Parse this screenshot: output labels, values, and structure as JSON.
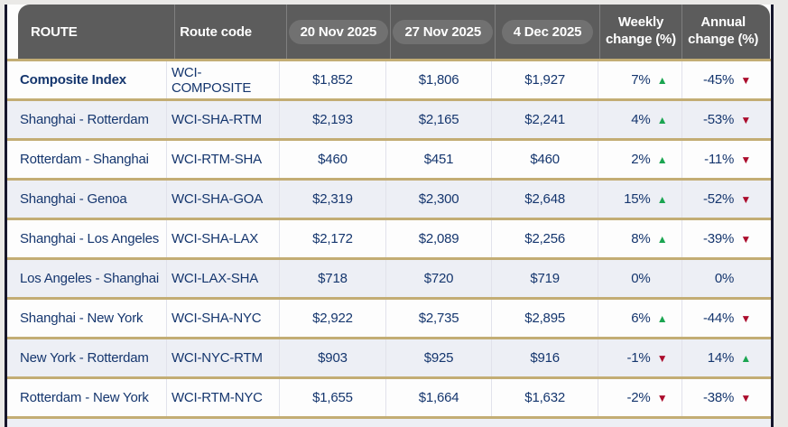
{
  "table": {
    "columns": {
      "route": "ROUTE",
      "route_code": "Route code",
      "dates": [
        "20 Nov 2025",
        "27 Nov 2025",
        "4 Dec 2025"
      ],
      "weekly": {
        "line1": "Weekly",
        "line2": "change (%)"
      },
      "annual": {
        "line1": "Annual",
        "line2": "change (%)"
      }
    },
    "rows": [
      {
        "route": "Composite Index",
        "code": "WCI-COMPOSITE",
        "v1": "$1,852",
        "v2": "$1,806",
        "v3": "$1,927",
        "weekly": {
          "value": "7%",
          "dir": "up"
        },
        "annual": {
          "value": "-45%",
          "dir": "down"
        },
        "emphasis": true
      },
      {
        "route": "Shanghai - Rotterdam",
        "code": "WCI-SHA-RTM",
        "v1": "$2,193",
        "v2": "$2,165",
        "v3": "$2,241",
        "weekly": {
          "value": "4%",
          "dir": "up"
        },
        "annual": {
          "value": "-53%",
          "dir": "down"
        },
        "emphasis": false
      },
      {
        "route": "Rotterdam - Shanghai",
        "code": "WCI-RTM-SHA",
        "v1": "$460",
        "v2": "$451",
        "v3": "$460",
        "weekly": {
          "value": "2%",
          "dir": "up"
        },
        "annual": {
          "value": "-11%",
          "dir": "down"
        },
        "emphasis": false
      },
      {
        "route": "Shanghai - Genoa",
        "code": "WCI-SHA-GOA",
        "v1": "$2,319",
        "v2": "$2,300",
        "v3": "$2,648",
        "weekly": {
          "value": "15%",
          "dir": "up"
        },
        "annual": {
          "value": "-52%",
          "dir": "down"
        },
        "emphasis": false
      },
      {
        "route": "Shanghai - Los Angeles",
        "code": "WCI-SHA-LAX",
        "v1": "$2,172",
        "v2": "$2,089",
        "v3": "$2,256",
        "weekly": {
          "value": "8%",
          "dir": "up"
        },
        "annual": {
          "value": "-39%",
          "dir": "down"
        },
        "emphasis": false
      },
      {
        "route": "Los Angeles - Shanghai",
        "code": "WCI-LAX-SHA",
        "v1": "$718",
        "v2": "$720",
        "v3": "$719",
        "weekly": {
          "value": "0%",
          "dir": "none"
        },
        "annual": {
          "value": "0%",
          "dir": "none"
        },
        "emphasis": false
      },
      {
        "route": "Shanghai - New York",
        "code": "WCI-SHA-NYC",
        "v1": "$2,922",
        "v2": "$2,735",
        "v3": "$2,895",
        "weekly": {
          "value": "6%",
          "dir": "up"
        },
        "annual": {
          "value": "-44%",
          "dir": "down"
        },
        "emphasis": false
      },
      {
        "route": "New York - Rotterdam",
        "code": "WCI-NYC-RTM",
        "v1": "$903",
        "v2": "$925",
        "v3": "$916",
        "weekly": {
          "value": "-1%",
          "dir": "down"
        },
        "annual": {
          "value": "14%",
          "dir": "up"
        },
        "emphasis": false
      },
      {
        "route": "Rotterdam - New York",
        "code": "WCI-RTM-NYC",
        "v1": "$1,655",
        "v2": "$1,664",
        "v3": "$1,632",
        "weekly": {
          "value": "-2%",
          "dir": "down"
        },
        "annual": {
          "value": "-38%",
          "dir": "down"
        },
        "emphasis": false
      }
    ]
  },
  "icons": {
    "up": "▲",
    "down": "▼"
  },
  "colors": {
    "page_bg": "#eae9e7",
    "header_bg": "#5c5c5c",
    "date_pill_bg": "#717171",
    "gold_border": "#c3ad74",
    "navy_text": "#15366e",
    "row_alt_bg": "#edeff5",
    "side_border": "#16162b",
    "up_green": "#1ba551",
    "down_red": "#ab0c2c"
  }
}
